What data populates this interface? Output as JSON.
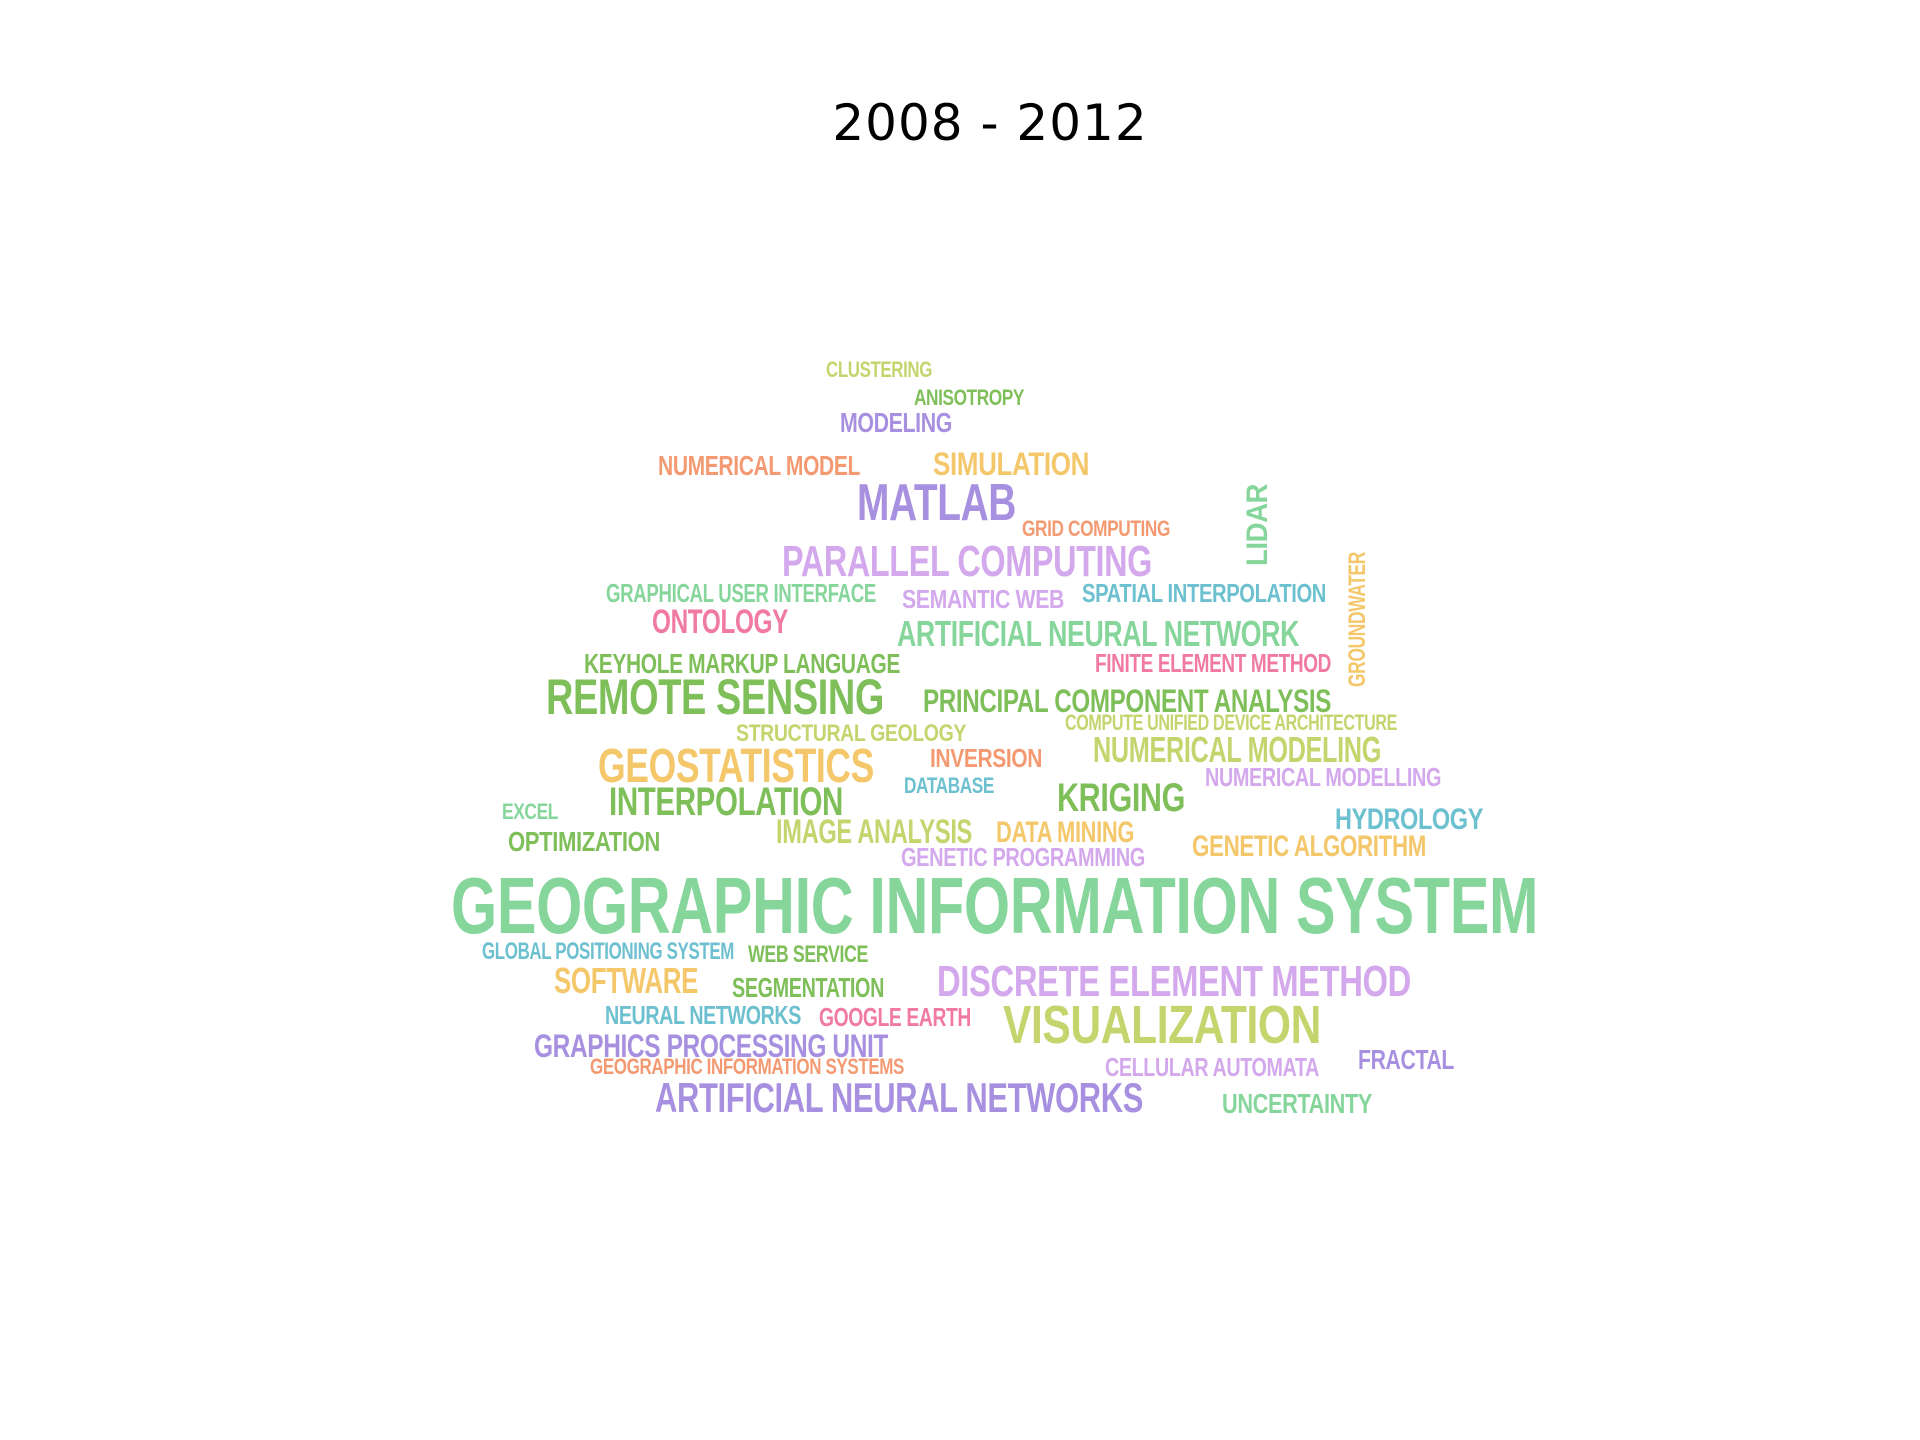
{
  "title": "2008 - 2012",
  "colors": {
    "green": "#86d69c",
    "lime": "#c6d46e",
    "olive_green": "#7fbf5a",
    "purple": "#a890e0",
    "lilac": "#d4a8ec",
    "orange": "#f49a72",
    "yellow": "#f4c76a",
    "pink": "#f07aa0",
    "teal": "#6cc0cf"
  },
  "words": [
    {
      "id": "clustering",
      "text": "CLUSTERING",
      "color": "#c6d46e"
    },
    {
      "id": "anisotropy",
      "text": "ANISOTROPY",
      "color": "#7fbf5a"
    },
    {
      "id": "modeling",
      "text": "MODELING",
      "color": "#a890e0"
    },
    {
      "id": "numerical-model",
      "text": "NUMERICAL MODEL",
      "color": "#f49a72"
    },
    {
      "id": "simulation",
      "text": "SIMULATION",
      "color": "#f4c76a"
    },
    {
      "id": "matlab",
      "text": "MATLAB",
      "color": "#a890e0"
    },
    {
      "id": "grid-computing",
      "text": "GRID COMPUTING",
      "color": "#f49a72"
    },
    {
      "id": "lidar",
      "text": "LIDAR",
      "color": "#86d69c"
    },
    {
      "id": "parallel-computing",
      "text": "PARALLEL COMPUTING",
      "color": "#d4a8ec"
    },
    {
      "id": "groundwater",
      "text": "GROUNDWATER",
      "color": "#f4c76a"
    },
    {
      "id": "graphical-user-interface",
      "text": "GRAPHICAL USER INTERFACE",
      "color": "#86d69c"
    },
    {
      "id": "semantic-web",
      "text": "SEMANTIC WEB",
      "color": "#d4a8ec"
    },
    {
      "id": "spatial-interpolation",
      "text": "SPATIAL INTERPOLATION",
      "color": "#6cc0cf"
    },
    {
      "id": "ontology",
      "text": "ONTOLOGY",
      "color": "#f07aa0"
    },
    {
      "id": "artificial-neural-network",
      "text": "ARTIFICIAL NEURAL NETWORK",
      "color": "#86d69c"
    },
    {
      "id": "keyhole-markup-language",
      "text": "KEYHOLE MARKUP LANGUAGE",
      "color": "#7fbf5a"
    },
    {
      "id": "finite-element-method",
      "text": "FINITE ELEMENT METHOD",
      "color": "#f07aa0"
    },
    {
      "id": "remote-sensing",
      "text": "REMOTE SENSING",
      "color": "#7fbf5a"
    },
    {
      "id": "principal-component-analysis",
      "text": "PRINCIPAL COMPONENT ANALYSIS",
      "color": "#7fbf5a"
    },
    {
      "id": "compute-unified-device-architecture",
      "text": "COMPUTE UNIFIED DEVICE ARCHITECTURE",
      "color": "#c6d46e"
    },
    {
      "id": "structural-geology",
      "text": "STRUCTURAL GEOLOGY",
      "color": "#c6d46e"
    },
    {
      "id": "geostatistics",
      "text": "GEOSTATISTICS",
      "color": "#f4c76a"
    },
    {
      "id": "inversion",
      "text": "INVERSION",
      "color": "#f49a72"
    },
    {
      "id": "numerical-modeling",
      "text": "NUMERICAL MODELING",
      "color": "#c6d46e"
    },
    {
      "id": "database",
      "text": "DATABASE",
      "color": "#6cc0cf"
    },
    {
      "id": "numerical-modelling",
      "text": "NUMERICAL MODELLING",
      "color": "#d4a8ec"
    },
    {
      "id": "interpolation",
      "text": "INTERPOLATION",
      "color": "#7fbf5a"
    },
    {
      "id": "kriging",
      "text": "KRIGING",
      "color": "#7fbf5a"
    },
    {
      "id": "excel",
      "text": "EXCEL",
      "color": "#86d69c"
    },
    {
      "id": "hydrology",
      "text": "HYDROLOGY",
      "color": "#6cc0cf"
    },
    {
      "id": "image-analysis",
      "text": "IMAGE ANALYSIS",
      "color": "#c6d46e"
    },
    {
      "id": "data-mining",
      "text": "DATA MINING",
      "color": "#f4c76a"
    },
    {
      "id": "optimization",
      "text": "OPTIMIZATION",
      "color": "#7fbf5a"
    },
    {
      "id": "genetic-algorithm",
      "text": "GENETIC ALGORITHM",
      "color": "#f4c76a"
    },
    {
      "id": "genetic-programming",
      "text": "GENETIC PROGRAMMING",
      "color": "#d4a8ec"
    },
    {
      "id": "geographic-information-system",
      "text": "GEOGRAPHIC INFORMATION SYSTEM",
      "color": "#86d69c"
    },
    {
      "id": "global-positioning-system",
      "text": "GLOBAL POSITIONING SYSTEM",
      "color": "#6cc0cf"
    },
    {
      "id": "web-service",
      "text": "WEB SERVICE",
      "color": "#7fbf5a"
    },
    {
      "id": "software",
      "text": "SOFTWARE",
      "color": "#f4c76a"
    },
    {
      "id": "segmentation",
      "text": "SEGMENTATION",
      "color": "#7fbf5a"
    },
    {
      "id": "discrete-element-method",
      "text": "DISCRETE ELEMENT METHOD",
      "color": "#d4a8ec"
    },
    {
      "id": "neural-networks",
      "text": "NEURAL NETWORKS",
      "color": "#6cc0cf"
    },
    {
      "id": "google-earth",
      "text": "GOOGLE EARTH",
      "color": "#f07aa0"
    },
    {
      "id": "visualization",
      "text": "VISUALIZATION",
      "color": "#c6d46e"
    },
    {
      "id": "graphics-processing-unit",
      "text": "GRAPHICS PROCESSING UNIT",
      "color": "#a890e0"
    },
    {
      "id": "geographic-information-systems",
      "text": "GEOGRAPHIC INFORMATION SYSTEMS",
      "color": "#f49a72"
    },
    {
      "id": "cellular-automata",
      "text": "CELLULAR AUTOMATA",
      "color": "#d4a8ec"
    },
    {
      "id": "fractal",
      "text": "FRACTAL",
      "color": "#a890e0"
    },
    {
      "id": "artificial-neural-networks",
      "text": "ARTIFICIAL NEURAL NETWORKS",
      "color": "#a890e0"
    },
    {
      "id": "uncertainty",
      "text": "UNCERTAINTY",
      "color": "#86d69c"
    }
  ]
}
